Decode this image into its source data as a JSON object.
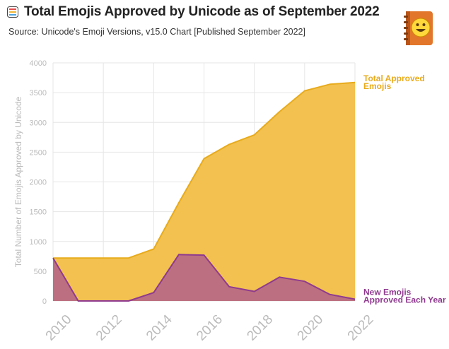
{
  "header": {
    "title": "Total Emojis Approved by Unicode as of September 2022",
    "subtitle": "Source: Unicode's Emoji Versions, v15.0 Chart [Published September 2022]"
  },
  "colors": {
    "total_fill": "#f2c150",
    "total_line": "#e8ab1c",
    "new_fill": "#b86a83",
    "new_line": "#8f3a8f",
    "grid": "#e6e6e6",
    "tick_text": "#bbbbbb"
  },
  "icons": {
    "title_icon": "emoji-grid-icon",
    "logo": "emojipedia-logo-icon"
  },
  "chart_data": {
    "type": "area",
    "ylabel": "Total Number of Emojis Approved by Unicode",
    "xlabel": "",
    "ylim": [
      0,
      4000
    ],
    "yticks": [
      "0",
      "500",
      "1000",
      "1500",
      "2000",
      "2500",
      "3000",
      "3500",
      "4000"
    ],
    "xlim": [
      2010,
      2022
    ],
    "xticks": [
      "2010",
      "2012",
      "2014",
      "2016",
      "2018",
      "2020",
      "2022"
    ],
    "grid": true,
    "x": [
      2010,
      2011,
      2012,
      2013,
      2014,
      2015,
      2016,
      2017,
      2018,
      2019,
      2020,
      2021,
      2022
    ],
    "series": [
      {
        "name": "Total Approved Emojis",
        "label_lines": [
          "Total Approved",
          "Emojis"
        ],
        "values": [
          722,
          722,
          722,
          722,
          872,
          1650,
          2390,
          2630,
          2790,
          3180,
          3530,
          3640,
          3670
        ]
      },
      {
        "name": "New Emojis Approved Each Year",
        "label_lines": [
          "New Emojis",
          "Approved Each Year"
        ],
        "values": [
          722,
          0,
          0,
          0,
          140,
          780,
          770,
          240,
          160,
          400,
          330,
          110,
          30
        ]
      }
    ]
  }
}
